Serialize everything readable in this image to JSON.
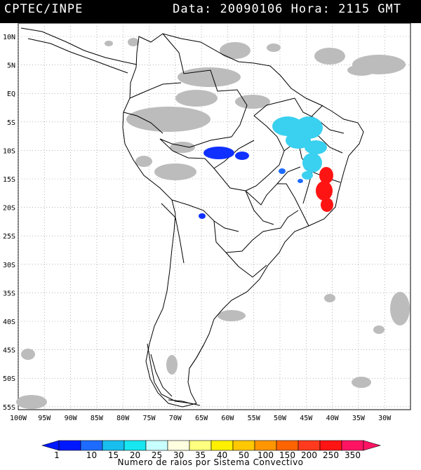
{
  "header": {
    "source": "CPTEC/INPE",
    "date_label": "Data:",
    "date_value": "20090106",
    "hour_label": "Hora:",
    "hour_value": "2115 GMT"
  },
  "map": {
    "lat_labels": [
      "10N",
      "5N",
      "EQ",
      "5S",
      "10S",
      "15S",
      "20S",
      "25S",
      "30S",
      "35S",
      "40S",
      "45S",
      "50S",
      "55S"
    ],
    "lon_labels": [
      "100W",
      "95W",
      "90W",
      "85W",
      "80W",
      "75W",
      "70W",
      "65W",
      "60W",
      "55W",
      "50W",
      "45W",
      "40W",
      "35W",
      "30W"
    ],
    "land_outline_color": "#000000",
    "cloud_color": "#bcbcbc"
  },
  "colorbar": {
    "values": [
      "1",
      "10",
      "15",
      "20",
      "25",
      "30",
      "35",
      "40",
      "50",
      "100",
      "150",
      "200",
      "250",
      "350"
    ],
    "colors": [
      "#0018ff",
      "#1e6bff",
      "#18bfee",
      "#18e6f0",
      "#c8ffff",
      "#ffffe0",
      "#ffff80",
      "#fff000",
      "#ffc800",
      "#ff9600",
      "#ff6400",
      "#ff3a1e",
      "#ff1414",
      "#ff1464"
    ],
    "caption": "Numero de raios por Sistema Convectivo"
  },
  "systems": [
    {
      "name": "cyan-system-northeast",
      "color": "#3ad0f0"
    },
    {
      "name": "red-system-southeast",
      "color": "#ff1414"
    },
    {
      "name": "blue-system-west",
      "color": "#1030ff"
    }
  ]
}
